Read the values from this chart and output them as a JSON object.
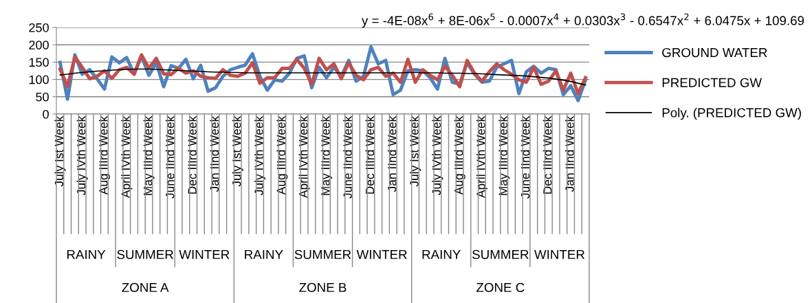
{
  "chart_data": {
    "type": "line",
    "categories": [
      "July Ist Week",
      null,
      null,
      "July IVth Week",
      null,
      null,
      "Aug IIIrd Week",
      null,
      null,
      "April IVth Week",
      null,
      null,
      "May IIIrd Week",
      null,
      null,
      "June IInd Week",
      null,
      null,
      "Dec IIIrd Week",
      null,
      null,
      "Jan IInd Week",
      null,
      null,
      "July Ist Week",
      null,
      null,
      "July IVth Week",
      null,
      null,
      "Aug IIIrd Week",
      null,
      null,
      "April IVth Week",
      null,
      null,
      "May IIIrd Week",
      null,
      null,
      "June IInd Week",
      null,
      null,
      "Dec IIIrd Week",
      null,
      null,
      "Jan IInd Week",
      null,
      null,
      "July Ist Week",
      null,
      null,
      "July IVth Week",
      null,
      null,
      "Aug IIIrd Week",
      null,
      null,
      "April IVth Week",
      null,
      null,
      "May IIIrd Week",
      null,
      null,
      "June IInd Week",
      null,
      null,
      "Dec IIIrd Week",
      null,
      null,
      "Jan IInd Week",
      null,
      null
    ],
    "series": [
      {
        "name": "GROUND WATER",
        "color": "#4f81bd",
        "values": [
          149,
          43,
          171,
          115,
          128,
          102,
          72,
          165,
          148,
          163,
          115,
          168,
          112,
          148,
          79,
          140,
          132,
          158,
          102,
          141,
          66,
          76,
          109,
          128,
          135,
          141,
          174,
          109,
          69,
          99,
          95,
          118,
          161,
          168,
          76,
          135,
          105,
          135,
          109,
          155,
          95,
          109,
          194,
          145,
          155,
          56,
          69,
          125,
          128,
          125,
          105,
          72,
          161,
          92,
          86,
          148,
          115,
          92,
          95,
          135,
          145,
          155,
          59,
          122,
          138,
          118,
          132,
          128,
          56,
          82,
          39,
          99
        ]
      },
      {
        "name": "PREDICTED GW",
        "color": "#c0504d",
        "values": [
          130,
          79,
          165,
          135,
          102,
          109,
          125,
          103,
          128,
          135,
          115,
          171,
          132,
          161,
          116,
          114,
          132,
          118,
          125,
          109,
          105,
          103,
          128,
          112,
          109,
          118,
          148,
          89,
          105,
          105,
          132,
          132,
          158,
          132,
          86,
          161,
          128,
          145,
          102,
          148,
          112,
          99,
          128,
          135,
          109,
          118,
          92,
          158,
          92,
          128,
          112,
          99,
          138,
          112,
          79,
          155,
          118,
          95,
          122,
          145,
          128,
          115,
          99,
          92,
          135,
          86,
          95,
          125,
          69,
          118,
          59,
          105
        ]
      },
      {
        "name": "Poly. (PREDICTED GW)",
        "color": "#000000",
        "values": [
          113,
          115,
          118,
          120,
          122,
          124,
          125,
          127,
          128,
          129,
          130,
          130,
          130,
          129,
          128,
          127,
          126,
          125,
          124,
          123,
          122,
          121,
          121,
          120,
          120,
          119,
          119,
          119,
          119,
          119,
          119,
          119,
          119,
          119,
          119,
          119,
          119,
          119,
          119,
          119,
          119,
          119,
          119,
          119,
          119,
          119,
          119,
          120,
          120,
          119,
          119,
          119,
          118,
          118,
          118,
          117,
          117,
          116,
          115,
          114,
          113,
          112,
          111,
          110,
          108,
          106,
          104,
          101,
          98,
          94,
          89,
          84
        ]
      }
    ],
    "ylim": [
      0,
      250
    ],
    "yticks": [
      0,
      50,
      100,
      150,
      200,
      250
    ],
    "grid": "y",
    "legend": "right",
    "marker": "none",
    "line_style": "solid",
    "annotations": [
      "y = -4E-08x$^{6}$ + 8E-06x$^{5}$ - 0.0007x$^{4}$ + 0.0303x$^{3}$ - 0.6547x$^{2}$ + 6.0475x + 109.69",
      "RAINY",
      "SUMMER",
      "WINTER",
      "RAINY",
      "SUMMER",
      "WINTER",
      "RAINY",
      "SUMMER",
      "WINTER",
      "ZONE A",
      "ZONE B",
      "ZONE C"
    ]
  }
}
